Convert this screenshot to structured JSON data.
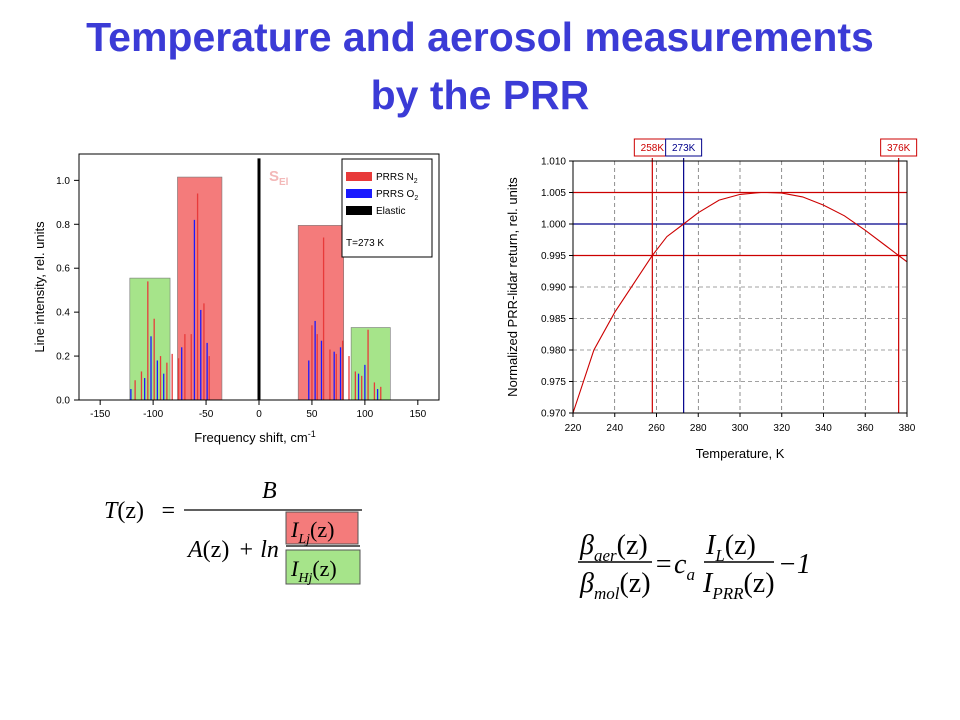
{
  "title": {
    "line1": "Temperature and aerosol measurements",
    "line2": "by the PRR"
  },
  "colors": {
    "title": "#3b3bd6",
    "n2": "#e83a3a",
    "o2": "#1a1aff",
    "elastic": "#000000",
    "band_red": "#f47b7b",
    "band_green": "#a6e48a"
  },
  "chart_data": [
    {
      "type": "bar",
      "title": "",
      "xlabel": "Frequency shift, cm",
      "xlabel_sup": "-1",
      "ylabel": "Line intensity, rel. units",
      "xlim": [
        -170,
        170
      ],
      "ylim": [
        0,
        1.12
      ],
      "x_ticks": [
        -150,
        -100,
        -50,
        0,
        50,
        100,
        150
      ],
      "y_ticks": [
        0.0,
        0.2,
        0.4,
        0.6,
        0.8,
        1.0
      ],
      "y_tick_labels": [
        "0.0",
        "0.2",
        "0.4",
        "0.6",
        "0.8",
        "1.0"
      ],
      "annotation": "S",
      "annotation_sub": "El",
      "legend": {
        "position": "top-right",
        "entries": [
          {
            "name": "PRRS N",
            "sub": "2",
            "color": "#e83a3a"
          },
          {
            "name": "PRRS O",
            "sub": "2",
            "color": "#1a1aff"
          },
          {
            "name": "Elastic",
            "sub": "",
            "color": "#000000"
          }
        ],
        "note": "T=273 K"
      },
      "bands": [
        {
          "x0": -122,
          "x1": -84,
          "height": 0.555,
          "color": "#a6e48a"
        },
        {
          "x0": -77,
          "x1": -35,
          "height": 1.015,
          "color": "#f47b7b"
        },
        {
          "x0": 37,
          "x1": 80,
          "height": 0.795,
          "color": "#f47b7b"
        },
        {
          "x0": 87,
          "x1": 124,
          "height": 0.33,
          "color": "#a6e48a"
        }
      ],
      "series": [
        {
          "name": "PRRS N2",
          "color": "#e83a3a",
          "x": [
            -117,
            -111,
            -105,
            -99,
            -93,
            -87,
            -82,
            -76,
            -70,
            -64,
            -58,
            -52,
            -47,
            50,
            55,
            61,
            67,
            73,
            79,
            85,
            91,
            97,
            103,
            109,
            115
          ],
          "values": [
            0.09,
            0.13,
            0.54,
            0.37,
            0.2,
            0.17,
            0.21,
            0.19,
            0.3,
            0.3,
            0.94,
            0.44,
            0.2,
            0.34,
            0.3,
            0.74,
            0.23,
            0.21,
            0.27,
            0.2,
            0.13,
            0.11,
            0.32,
            0.08,
            0.06
          ]
        },
        {
          "name": "PRRS O2",
          "color": "#1a1aff",
          "x": [
            -121,
            -108,
            -102,
            -96,
            -90,
            -73,
            -61,
            -55,
            -49,
            47,
            53,
            59,
            71,
            77,
            94,
            100,
            112
          ],
          "values": [
            0.05,
            0.1,
            0.29,
            0.18,
            0.12,
            0.24,
            0.82,
            0.41,
            0.26,
            0.18,
            0.36,
            0.27,
            0.22,
            0.24,
            0.12,
            0.16,
            0.05
          ]
        },
        {
          "name": "Elastic",
          "color": "#000000",
          "x": [
            0
          ],
          "values": [
            1.1
          ]
        }
      ]
    },
    {
      "type": "line",
      "title": "",
      "xlabel": "Temperature, K",
      "ylabel": "Normalized PRR-lidar return, rel. units",
      "xlim": [
        220,
        380
      ],
      "ylim": [
        0.97,
        1.01
      ],
      "x_ticks": [
        220,
        240,
        260,
        280,
        300,
        320,
        340,
        360,
        380
      ],
      "y_ticks": [
        0.97,
        0.975,
        0.98,
        0.985,
        0.99,
        0.995,
        1.0,
        1.005,
        1.01
      ],
      "y_tick_labels": [
        "0.970",
        "0.975",
        "0.980",
        "0.985",
        "0.990",
        "0.995",
        "1.000",
        "1.005",
        "1.010"
      ],
      "grid": true,
      "series": [
        {
          "color": "#cc0000",
          "x": [
            220,
            230,
            240,
            250,
            258,
            265,
            273,
            280,
            290,
            300,
            310,
            313,
            320,
            330,
            340,
            350,
            360,
            370,
            376,
            380
          ],
          "values": [
            0.97,
            0.98,
            0.986,
            0.991,
            0.995,
            0.998,
            1.0,
            1.0018,
            1.0038,
            1.0047,
            1.005,
            1.005,
            1.0049,
            1.0043,
            1.003,
            1.0013,
            0.999,
            0.9965,
            0.995,
            0.994
          ]
        }
      ],
      "vertical_markers": [
        {
          "x": 258,
          "label": "258K",
          "color": "#cc0000"
        },
        {
          "x": 273,
          "label": "273K",
          "color": "#00008b"
        },
        {
          "x": 376,
          "label": "376K",
          "color": "#cc0000"
        }
      ],
      "horizontal_markers": [
        {
          "y": 1.005,
          "color": "#cc0000"
        },
        {
          "y": 1.0,
          "color": "#00008b"
        },
        {
          "y": 0.995,
          "color": "#cc0000"
        }
      ]
    }
  ],
  "formula1": {
    "lhs_T": "T",
    "lhs_z": "(z)",
    "equals": "=",
    "numerator": "B",
    "den_A": "A",
    "den_z": "(z)",
    "den_plus_ln": "+ ln",
    "ILj_I": "I",
    "ILj_sub": "Lj",
    "ILj_z": "(z)",
    "IHj_I": "I",
    "IHj_sub": "Hj",
    "IHj_z": "(z)"
  },
  "formula2": {
    "beta": "β",
    "aer": "aer",
    "mol": "mol",
    "z": "(z)",
    "equals": "=",
    "c": "c",
    "c_sub": "a",
    "IL_I": "I",
    "IL_sub": "L",
    "IPRR_I": "I",
    "IPRR_sub": "PRR",
    "minus_one": "−1"
  }
}
